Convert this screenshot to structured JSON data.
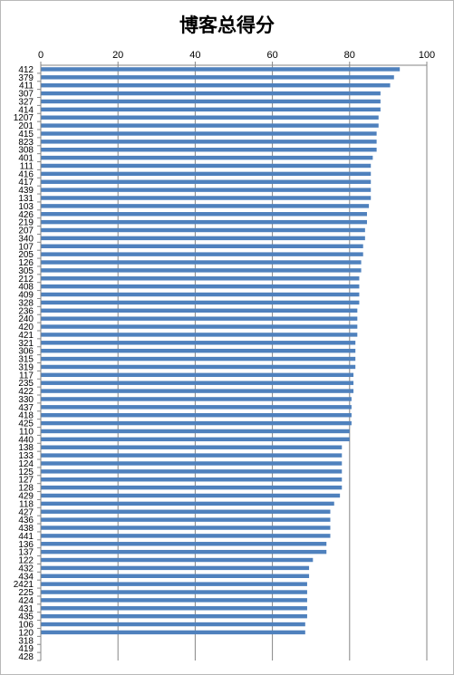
{
  "chart_data": {
    "type": "bar",
    "orientation": "horizontal",
    "title": "博客总得分",
    "xlabel": "",
    "ylabel": "",
    "xlim": [
      0,
      100
    ],
    "x_ticks": [
      "0",
      "20",
      "40",
      "60",
      "80",
      "100"
    ],
    "axis_position": "top",
    "grid": true,
    "legend": "none",
    "bar_color": "#4f81bd",
    "categories": [
      "412",
      "379",
      "411",
      "307",
      "327",
      "414",
      "1207",
      "201",
      "415",
      "823",
      "308",
      "401",
      "111",
      "416",
      "417",
      "439",
      "131",
      "103",
      "426",
      "219",
      "207",
      "340",
      "107",
      "205",
      "126",
      "305",
      "212",
      "408",
      "409",
      "328",
      "236",
      "240",
      "420",
      "421",
      "321",
      "306",
      "315",
      "319",
      "117",
      "235",
      "422",
      "330",
      "437",
      "418",
      "425",
      "110",
      "440",
      "138",
      "133",
      "124",
      "125",
      "127",
      "128",
      "429",
      "118",
      "427",
      "436",
      "438",
      "441",
      "136",
      "137",
      "122",
      "432",
      "434",
      "2421",
      "225",
      "424",
      "431",
      "435",
      "106",
      "120",
      "318",
      "419",
      "428"
    ],
    "values": [
      93,
      91.5,
      90.5,
      88,
      88,
      88,
      87.5,
      87.5,
      87,
      87,
      87,
      86,
      85.5,
      85.5,
      85.5,
      85.5,
      85.5,
      85,
      84.5,
      84.5,
      84,
      84,
      83.5,
      83.5,
      83,
      83,
      82.5,
      82.5,
      82.5,
      82.5,
      82,
      82,
      82,
      82,
      81.5,
      81.5,
      81.5,
      81.5,
      81,
      81,
      81,
      80.5,
      80.5,
      80.5,
      80.5,
      80,
      80,
      78,
      78,
      78,
      78,
      78,
      78,
      77.5,
      76,
      75,
      75,
      75,
      75,
      74,
      74,
      70.5,
      69.5,
      69.5,
      69,
      69,
      69,
      69,
      69,
      68.5,
      68.5,
      0,
      0,
      0
    ]
  }
}
